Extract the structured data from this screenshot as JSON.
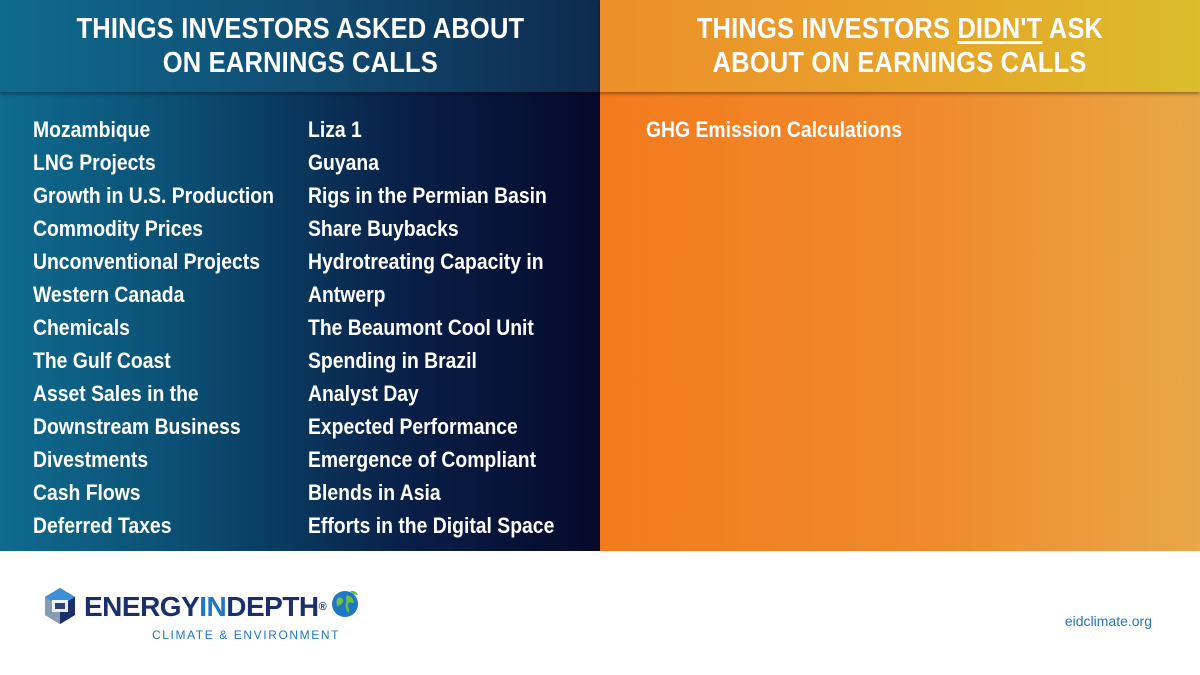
{
  "left_panel": {
    "title_line1": "THINGS INVESTORS ASKED ABOUT",
    "title_line2": "ON EARNINGS CALLS",
    "column1": [
      "Mozambique",
      "LNG Projects",
      "Growth in U.S. Production",
      "Commodity Prices",
      "Unconventional Projects",
      "Western Canada",
      "Chemicals",
      "The Gulf Coast",
      "Asset Sales in the",
      "Downstream Business",
      "Divestments",
      "Cash Flows",
      "Deferred Taxes"
    ],
    "column2": [
      "Liza 1",
      "Guyana",
      "Rigs in the Permian Basin",
      "Share Buybacks",
      "Hydrotreating Capacity in",
      "Antwerp",
      "The Beaumont Cool Unit",
      "Spending in Brazil",
      "Analyst Day",
      "Expected Performance",
      "Emergence of Compliant",
      "Blends in Asia",
      "Efforts in the Digital Space"
    ]
  },
  "right_panel": {
    "title_line1_pre": "THINGS INVESTORS ",
    "title_line1_emph": "DIDN'T",
    "title_line1_post": " ASK",
    "title_line2": "ABOUT ON EARNINGS CALLS",
    "items": [
      "GHG Emission Calculations"
    ]
  },
  "footer": {
    "logo_word_a": "ENERGY",
    "logo_word_b": "IN",
    "logo_word_c": "DEPTH",
    "logo_reg": "®",
    "logo_sub": "CLIMATE & ENVIRONMENT",
    "website": "eidclimate.org",
    "colors": {
      "brand_navy": "#1a2f6b",
      "brand_blue": "#1e77c5",
      "brand_green": "#6cc04a"
    }
  }
}
